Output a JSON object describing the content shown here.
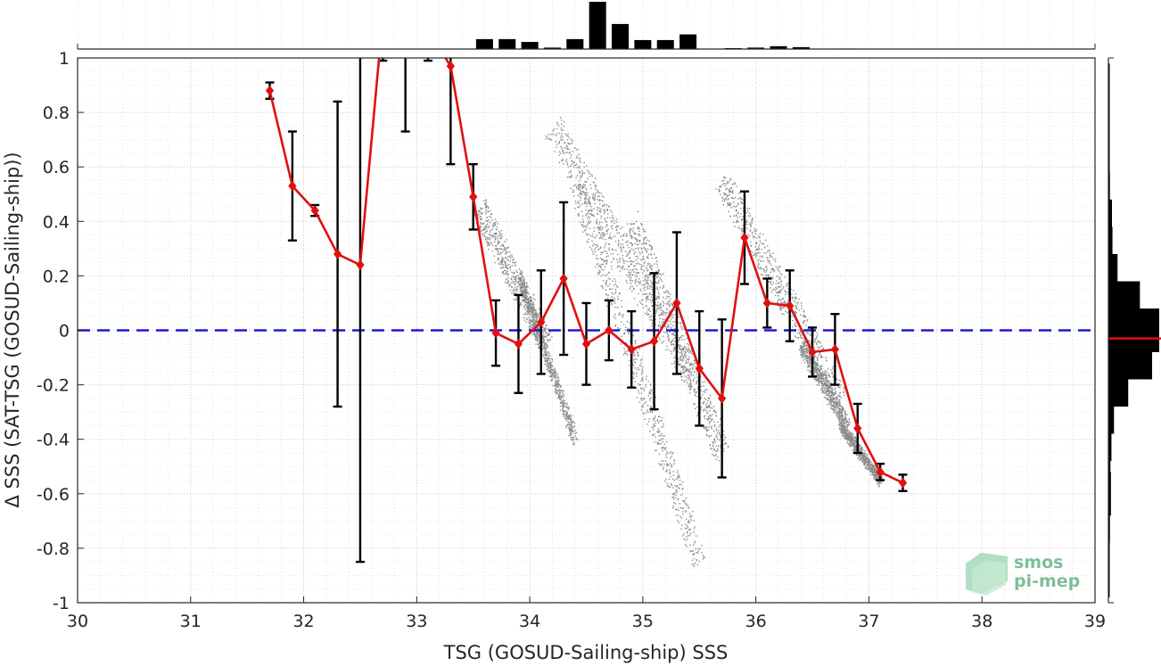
{
  "chart_data": {
    "type": "scatter",
    "xlabel": "TSG (GOSUD-Sailing-ship) SSS",
    "ylabel": "Δ SSS (SAT-TSG (GOSUD-Sailing-ship))",
    "xlim": [
      30,
      39
    ],
    "ylim": [
      -1,
      1
    ],
    "xticks": [
      "30",
      "31",
      "32",
      "33",
      "34",
      "35",
      "36",
      "37",
      "38",
      "39"
    ],
    "yticks": [
      "-1",
      "-0.8",
      "-0.6",
      "-0.4",
      "-0.2",
      "0",
      "0.2",
      "0.4",
      "0.6",
      "0.8",
      "1"
    ],
    "grid": "dotted",
    "reference_line": {
      "y": 0,
      "color": "#1a1adb",
      "style": "dashed"
    },
    "series": [
      {
        "kind": "binned-mean-with-std",
        "color": "#e01010",
        "x": [
          31.7,
          31.9,
          32.1,
          32.3,
          32.5,
          32.7,
          32.9,
          33.1,
          33.3,
          33.5,
          33.7,
          33.9,
          34.1,
          34.3,
          34.5,
          34.7,
          34.9,
          35.1,
          35.3,
          35.5,
          35.7,
          35.9,
          36.1,
          36.3,
          36.5,
          36.7,
          36.9,
          37.1,
          37.3
        ],
        "mean": [
          0.88,
          0.53,
          0.44,
          0.28,
          0.24,
          1.15,
          1.3,
          1.1,
          0.97,
          0.49,
          -0.01,
          -0.05,
          0.03,
          0.19,
          -0.05,
          0.0,
          -0.07,
          -0.04,
          0.1,
          -0.14,
          -0.25,
          0.34,
          0.1,
          0.09,
          -0.08,
          -0.07,
          -0.36,
          -0.52,
          -0.56
        ],
        "std": [
          0.03,
          0.2,
          0.02,
          0.56,
          1.09,
          0.16,
          0.57,
          0.11,
          0.36,
          0.12,
          0.12,
          0.18,
          0.19,
          0.28,
          0.15,
          0.11,
          0.14,
          0.25,
          0.26,
          0.21,
          0.29,
          0.17,
          0.09,
          0.13,
          0.09,
          0.13,
          0.09,
          0.03,
          0.03
        ]
      }
    ],
    "scatter_clusters": [
      {
        "x": [
          33.55,
          34.15
        ],
        "y": [
          0.45,
          -0.05
        ],
        "spread": 0.18
      },
      {
        "x": [
          33.9,
          34.4
        ],
        "y": [
          0.2,
          -0.4
        ],
        "spread": 0.08
      },
      {
        "x": [
          34.2,
          35.4
        ],
        "y": [
          0.75,
          -0.15
        ],
        "spread": 0.22
      },
      {
        "x": [
          34.4,
          35.5
        ],
        "y": [
          0.55,
          -0.85
        ],
        "spread": 0.18
      },
      {
        "x": [
          34.9,
          35.7
        ],
        "y": [
          0.4,
          -0.45
        ],
        "spread": 0.2
      },
      {
        "x": [
          35.7,
          36.75
        ],
        "y": [
          0.55,
          -0.25
        ],
        "spread": 0.2
      },
      {
        "x": [
          36.4,
          36.8
        ],
        "y": [
          -0.05,
          -0.35
        ],
        "spread": 0.1
      },
      {
        "x": [
          36.75,
          37.1
        ],
        "y": [
          -0.35,
          -0.55
        ],
        "spread": 0.06
      }
    ],
    "top_histogram": {
      "bins": [
        33.6,
        33.8,
        34.0,
        34.2,
        34.4,
        34.6,
        34.8,
        35.0,
        35.2,
        35.4,
        35.6,
        35.8,
        36.0,
        36.2,
        36.4,
        36.6,
        36.8,
        37.0
      ],
      "counts": [
        0.21,
        0.21,
        0.15,
        0.03,
        0.21,
        1.0,
        0.53,
        0.19,
        0.19,
        0.31,
        0.0,
        0.02,
        0.03,
        0.06,
        0.04,
        0.0,
        0.01,
        0.0
      ]
    },
    "right_histogram": {
      "bins": [
        0.9,
        0.8,
        0.7,
        0.6,
        0.5,
        0.4,
        0.3,
        0.2,
        0.1,
        0.0,
        -0.1,
        -0.2,
        -0.3,
        -0.4,
        -0.5,
        -0.6,
        -0.7,
        -0.8,
        -0.9
      ],
      "counts": [
        0.01,
        0.02,
        0.01,
        0.01,
        0.03,
        0.07,
        0.08,
        0.18,
        0.62,
        1.0,
        0.86,
        0.39,
        0.11,
        0.06,
        0.04,
        0.05,
        0.03,
        0.02,
        0.02
      ],
      "median_line": -0.03,
      "median_color": "#e01010"
    }
  },
  "logo": {
    "line1": "smos",
    "line2": "pi-mep"
  }
}
